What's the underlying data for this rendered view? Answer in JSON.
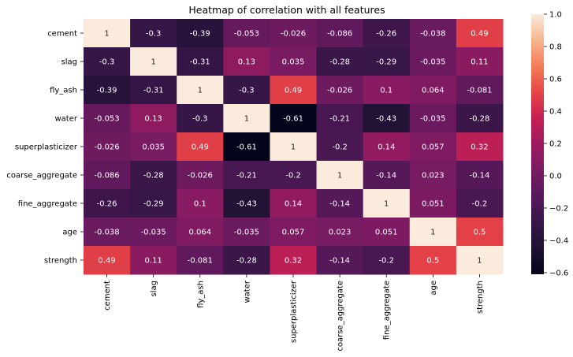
{
  "chart_data": {
    "type": "heatmap",
    "title": "Heatmap of correlation with all features",
    "row_labels": [
      "cement",
      "slag",
      "fly_ash",
      "water",
      "superplasticizer",
      "coarse_aggregate",
      "fine_aggregate",
      "age",
      "strength"
    ],
    "col_labels": [
      "cement",
      "slag",
      "fly_ash",
      "water",
      "superplasticizer",
      "coarse_aggregate",
      "fine_aggregate",
      "age",
      "strength"
    ],
    "values": [
      [
        1,
        -0.3,
        -0.39,
        -0.053,
        -0.026,
        -0.086,
        -0.26,
        -0.038,
        0.49
      ],
      [
        -0.3,
        1,
        -0.31,
        0.13,
        0.035,
        -0.28,
        -0.29,
        -0.035,
        0.11
      ],
      [
        -0.39,
        -0.31,
        1,
        -0.3,
        0.49,
        -0.026,
        0.1,
        0.064,
        -0.081
      ],
      [
        -0.053,
        0.13,
        -0.3,
        1,
        -0.61,
        -0.21,
        -0.43,
        -0.035,
        -0.28
      ],
      [
        -0.026,
        0.035,
        0.49,
        -0.61,
        1,
        -0.2,
        0.14,
        0.057,
        0.32
      ],
      [
        -0.086,
        -0.28,
        -0.026,
        -0.21,
        -0.2,
        1,
        -0.14,
        0.023,
        -0.14
      ],
      [
        -0.26,
        -0.29,
        0.1,
        -0.43,
        0.14,
        -0.14,
        1,
        0.051,
        -0.2
      ],
      [
        -0.038,
        -0.035,
        0.064,
        -0.035,
        0.057,
        0.023,
        0.051,
        1,
        0.5
      ],
      [
        0.49,
        0.11,
        -0.081,
        -0.28,
        0.32,
        -0.14,
        -0.2,
        0.5,
        1
      ]
    ],
    "annotations": [
      [
        "1",
        "-0.3",
        "-0.39",
        "-0.053",
        "-0.026",
        "-0.086",
        "-0.26",
        "-0.038",
        "0.49"
      ],
      [
        "-0.3",
        "1",
        "-0.31",
        "0.13",
        "0.035",
        "-0.28",
        "-0.29",
        "-0.035",
        "0.11"
      ],
      [
        "-0.39",
        "-0.31",
        "1",
        "-0.3",
        "0.49",
        "-0.026",
        "0.1",
        "0.064",
        "-0.081"
      ],
      [
        "-0.053",
        "0.13",
        "-0.3",
        "1",
        "-0.61",
        "-0.21",
        "-0.43",
        "-0.035",
        "-0.28"
      ],
      [
        "-0.026",
        "0.035",
        "0.49",
        "-0.61",
        "1",
        "-0.2",
        "0.14",
        "0.057",
        "0.32"
      ],
      [
        "-0.086",
        "-0.28",
        "-0.026",
        "-0.21",
        "-0.2",
        "1",
        "-0.14",
        "0.023",
        "-0.14"
      ],
      [
        "-0.26",
        "-0.29",
        "0.1",
        "-0.43",
        "0.14",
        "-0.14",
        "1",
        "0.051",
        "-0.2"
      ],
      [
        "-0.038",
        "-0.035",
        "0.064",
        "-0.035",
        "0.057",
        "0.023",
        "0.051",
        "1",
        "0.5"
      ],
      [
        "0.49",
        "0.11",
        "-0.081",
        "-0.28",
        "0.32",
        "-0.14",
        "-0.2",
        "0.5",
        "1"
      ]
    ],
    "colorbar": {
      "vmin": -0.61,
      "vmax": 1.0,
      "ticks": [
        1.0,
        0.8,
        0.6,
        0.4,
        0.2,
        0.0,
        -0.2,
        -0.4,
        -0.6
      ],
      "tick_labels": [
        "1.0",
        "0.8",
        "0.6",
        "0.4",
        "0.2",
        "0.0",
        "−0.2",
        "−0.4",
        "−0.6"
      ],
      "colormap": "rocket"
    }
  }
}
